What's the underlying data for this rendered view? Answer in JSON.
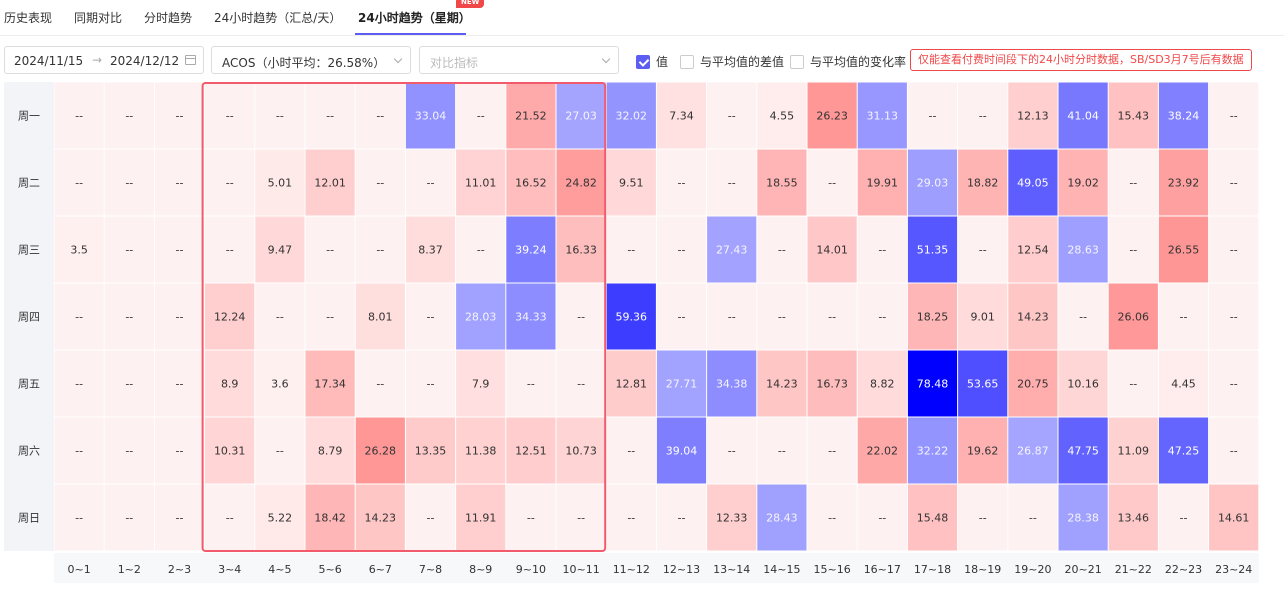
{
  "tabs": [
    {
      "label": "历史表现"
    },
    {
      "label": "同期对比"
    },
    {
      "label": "分时趋势"
    },
    {
      "label": "24小时趋势（汇总/天）"
    },
    {
      "label": "24小时趋势（星期）",
      "active": true,
      "badge": "NEW"
    }
  ],
  "toolbar": {
    "date_start": "2024/11/15",
    "date_end": "2024/12/12",
    "metric_select": "ACOS（小时平均：26.58%）",
    "compare_placeholder": "对比指标",
    "checkboxes": [
      {
        "label": "值",
        "checked": true
      },
      {
        "label": "与平均值的差值",
        "checked": false
      },
      {
        "label": "与平均值的变化率",
        "checked": false
      }
    ],
    "notice": "仅能查看付费时间段下的24小时分时数据，SB/SD3月7号后有数据"
  },
  "colors": {
    "accent": "#5b5ef0",
    "highlight_border": "#f25b6b",
    "cold": "#0000ff",
    "hot": "#f08080"
  },
  "chart_data": {
    "type": "heatmap",
    "average": 26.58,
    "rows": [
      "周一",
      "周二",
      "周三",
      "周四",
      "周五",
      "周六",
      "周日"
    ],
    "columns": [
      "0~1",
      "1~2",
      "2~3",
      "3~4",
      "4~5",
      "5~6",
      "6~7",
      "7~8",
      "8~9",
      "9~10",
      "10~11",
      "11~12",
      "12~13",
      "13~14",
      "14~15",
      "15~16",
      "16~17",
      "17~18",
      "18~19",
      "19~20",
      "20~21",
      "21~22",
      "22~23",
      "23~24"
    ],
    "values": [
      [
        null,
        null,
        null,
        null,
        null,
        null,
        null,
        33.04,
        null,
        21.52,
        27.03,
        32.02,
        7.34,
        null,
        4.55,
        26.23,
        31.13,
        null,
        null,
        12.13,
        41.04,
        15.43,
        38.24,
        null
      ],
      [
        null,
        null,
        null,
        null,
        5.01,
        12.01,
        null,
        null,
        11.01,
        16.52,
        24.82,
        9.51,
        null,
        null,
        18.55,
        null,
        19.91,
        29.03,
        18.82,
        49.05,
        19.02,
        null,
        23.92,
        null
      ],
      [
        3.5,
        null,
        null,
        null,
        9.47,
        null,
        null,
        8.37,
        null,
        39.24,
        16.33,
        null,
        null,
        27.43,
        null,
        14.01,
        null,
        51.35,
        null,
        12.54,
        28.63,
        null,
        26.55,
        null
      ],
      [
        null,
        null,
        null,
        12.24,
        null,
        null,
        8.01,
        null,
        28.03,
        34.33,
        null,
        59.36,
        null,
        null,
        null,
        null,
        null,
        18.25,
        9.01,
        14.23,
        null,
        26.06,
        null,
        null
      ],
      [
        null,
        null,
        null,
        8.9,
        3.6,
        17.34,
        null,
        null,
        7.9,
        null,
        null,
        12.81,
        27.71,
        34.38,
        14.23,
        16.73,
        8.82,
        78.48,
        53.65,
        20.75,
        10.16,
        null,
        4.45,
        null
      ],
      [
        null,
        null,
        null,
        10.31,
        null,
        8.79,
        26.28,
        13.35,
        11.38,
        12.51,
        10.73,
        null,
        39.04,
        null,
        null,
        null,
        22.02,
        32.22,
        19.62,
        26.87,
        47.75,
        11.09,
        47.25,
        null
      ],
      [
        null,
        null,
        null,
        null,
        5.22,
        18.42,
        14.23,
        null,
        11.91,
        null,
        null,
        null,
        null,
        12.33,
        28.43,
        null,
        null,
        15.48,
        null,
        null,
        28.38,
        13.46,
        null,
        14.61
      ]
    ],
    "empty_label": "--",
    "highlight": {
      "row_start": 0,
      "row_end": 6,
      "col_start": 3,
      "col_end": 10
    }
  }
}
